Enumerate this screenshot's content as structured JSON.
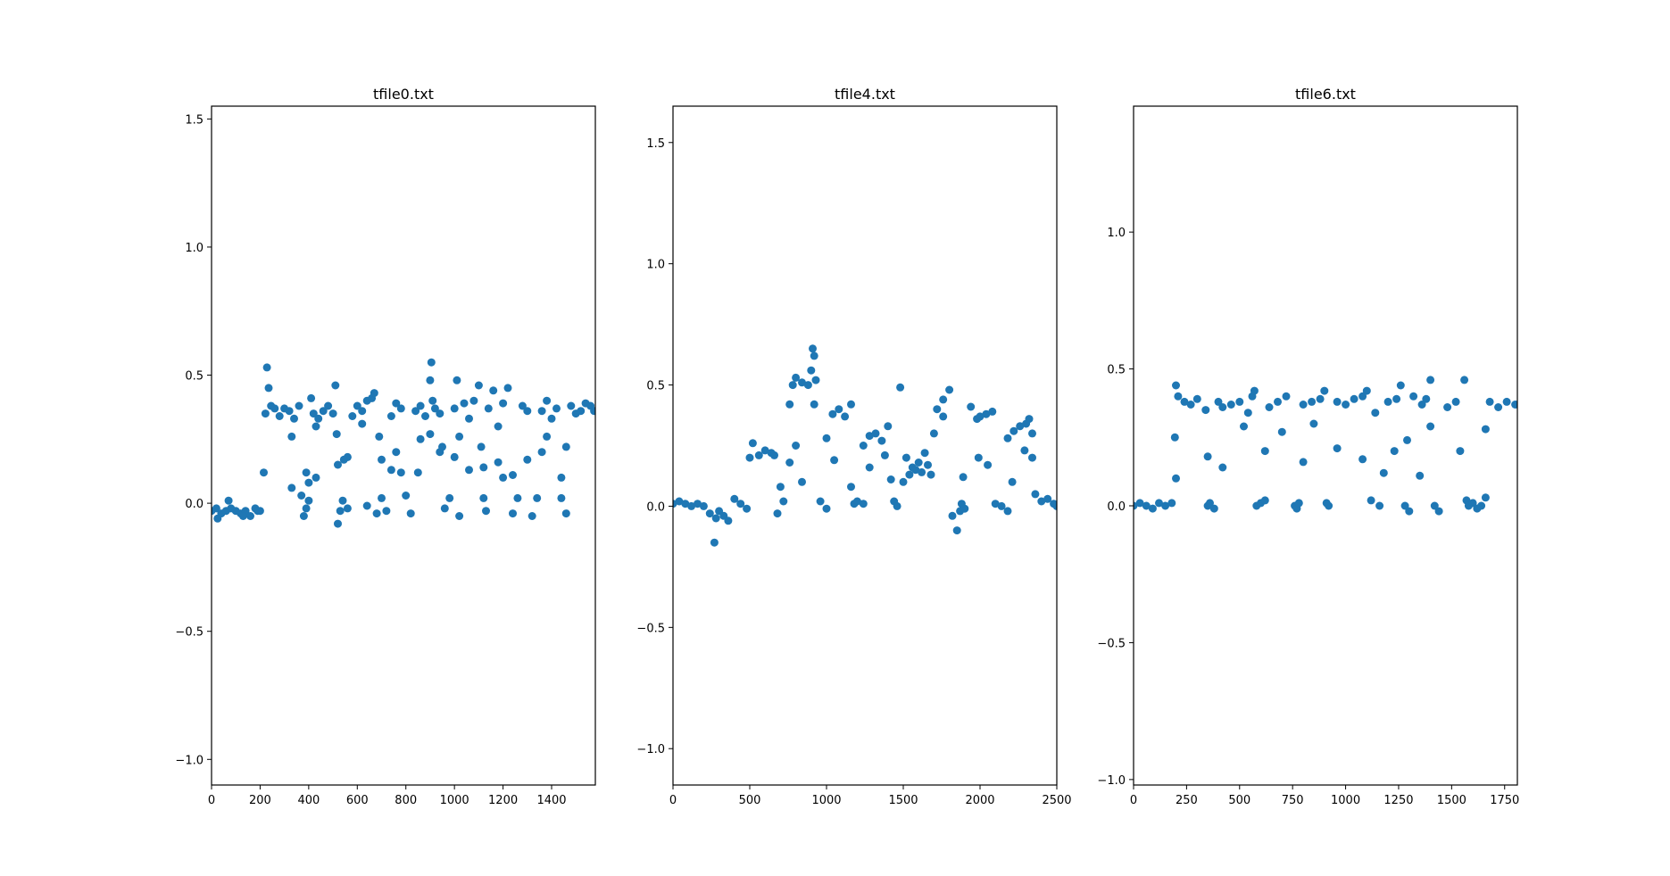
{
  "marker_color": "#1f77b4",
  "chart_data": [
    {
      "type": "scatter",
      "title": "tfile0.txt",
      "xlim": [
        0,
        1580
      ],
      "ylim": [
        -1.1,
        1.55
      ],
      "xticks": [
        0,
        200,
        400,
        600,
        800,
        1000,
        1200,
        1400
      ],
      "xtick_labels": [
        "0",
        "200",
        "400",
        "600",
        "800",
        "1000",
        "1200",
        "1400"
      ],
      "yticks": [
        -1.0,
        -0.5,
        0.0,
        0.5,
        1.0,
        1.5
      ],
      "ytick_labels": [
        "−1.0",
        "−0.5",
        "0.0",
        "0.5",
        "1.0",
        "1.5"
      ],
      "grid": false,
      "series": [
        {
          "x": [
            0,
            20,
            40,
            60,
            80,
            100,
            120,
            140,
            160,
            180,
            200,
            215,
            222,
            228,
            235,
            245,
            260,
            280,
            300,
            320,
            340,
            360,
            370,
            380,
            390,
            400,
            410,
            420,
            430,
            440,
            460,
            480,
            500,
            510,
            515,
            520,
            530,
            540,
            560,
            580,
            600,
            620,
            640,
            660,
            670,
            680,
            700,
            720,
            740,
            760,
            780,
            800,
            820,
            840,
            860,
            880,
            900,
            905,
            910,
            920,
            940,
            960,
            980,
            1000,
            1010,
            1020,
            1040,
            1060,
            1080,
            1100,
            1120,
            1130,
            1140,
            1160,
            1180,
            1200,
            1220,
            1240,
            1260,
            1280,
            1300,
            1320,
            1340,
            1360,
            1380,
            1400,
            1420,
            1440,
            1460,
            1480,
            1500,
            1520,
            1540,
            1560,
            1575,
            25,
            70,
            130,
            190,
            390,
            400,
            430,
            520,
            560,
            640,
            700,
            740,
            780,
            860,
            900,
            940,
            1000,
            1060,
            1110,
            1200,
            1300,
            1360,
            1440,
            1460,
            330,
            330,
            545,
            620,
            690,
            760,
            850,
            950,
            1020,
            1120,
            1180,
            1240,
            1380
          ],
          "y": [
            -0.03,
            -0.02,
            -0.04,
            -0.03,
            -0.02,
            -0.03,
            -0.04,
            -0.03,
            -0.05,
            -0.02,
            -0.03,
            0.12,
            0.35,
            0.53,
            0.45,
            0.38,
            0.37,
            0.34,
            0.37,
            0.36,
            0.33,
            0.38,
            0.03,
            -0.05,
            -0.02,
            0.01,
            0.41,
            0.35,
            0.3,
            0.33,
            0.36,
            0.38,
            0.35,
            0.46,
            0.27,
            -0.08,
            -0.03,
            0.01,
            0.18,
            0.34,
            0.38,
            0.36,
            0.4,
            0.41,
            0.43,
            -0.04,
            0.02,
            -0.03,
            0.34,
            0.39,
            0.37,
            0.03,
            -0.04,
            0.36,
            0.38,
            0.34,
            0.48,
            0.55,
            0.4,
            0.37,
            0.35,
            -0.02,
            0.02,
            0.37,
            0.48,
            -0.05,
            0.39,
            0.33,
            0.4,
            0.46,
            0.02,
            -0.03,
            0.37,
            0.44,
            0.3,
            0.39,
            0.45,
            -0.04,
            0.02,
            0.38,
            0.36,
            -0.05,
            0.02,
            0.36,
            0.4,
            0.33,
            0.37,
            0.02,
            -0.04,
            0.38,
            0.35,
            0.36,
            0.39,
            0.38,
            0.36,
            -0.06,
            0.01,
            -0.05,
            -0.03,
            0.12,
            0.08,
            0.1,
            0.15,
            -0.02,
            -0.01,
            0.17,
            0.13,
            0.12,
            0.25,
            0.27,
            0.2,
            0.18,
            0.13,
            0.22,
            0.1,
            0.17,
            0.2,
            0.1,
            0.22,
            0.06,
            0.26,
            0.17,
            0.31,
            0.26,
            0.2,
            0.12,
            0.22,
            0.26,
            0.14,
            0.16,
            0.11,
            0.26
          ]
        }
      ]
    },
    {
      "type": "scatter",
      "title": "tfile4.txt",
      "xlim": [
        0,
        2500
      ],
      "ylim": [
        -1.15,
        1.65
      ],
      "xticks": [
        0,
        500,
        1000,
        1500,
        2000,
        2500
      ],
      "xtick_labels": [
        "0",
        "500",
        "1000",
        "1500",
        "2000",
        "2500"
      ],
      "yticks": [
        -1.0,
        -0.5,
        0.0,
        0.5,
        1.0,
        1.5
      ],
      "ytick_labels": [
        "−1.0",
        "−0.5",
        "0.0",
        "0.5",
        "1.0",
        "1.5"
      ],
      "grid": false,
      "series": [
        {
          "x": [
            0,
            40,
            80,
            120,
            160,
            200,
            240,
            270,
            280,
            300,
            330,
            360,
            400,
            440,
            480,
            500,
            520,
            560,
            600,
            640,
            660,
            680,
            720,
            760,
            780,
            800,
            840,
            880,
            900,
            910,
            920,
            930,
            960,
            1000,
            1040,
            1080,
            1120,
            1160,
            1180,
            1200,
            1240,
            1280,
            1320,
            1360,
            1400,
            1440,
            1460,
            1480,
            1500,
            1520,
            1540,
            1560,
            1580,
            1600,
            1620,
            1640,
            1660,
            1680,
            1720,
            1760,
            1800,
            1820,
            1850,
            1870,
            1880,
            1900,
            1940,
            1980,
            2000,
            2040,
            2080,
            2100,
            2140,
            2180,
            2220,
            2260,
            2300,
            2320,
            2340,
            2360,
            2400,
            2440,
            2480,
            2500,
            700,
            760,
            800,
            840,
            920,
            1000,
            1050,
            1160,
            1240,
            1280,
            1380,
            1420,
            1700,
            1760,
            1890,
            1990,
            2050,
            2180,
            2210,
            2290,
            2340
          ],
          "y": [
            0.01,
            0.02,
            0.01,
            0.0,
            0.01,
            0.0,
            -0.03,
            -0.15,
            -0.05,
            -0.02,
            -0.04,
            -0.06,
            0.03,
            0.01,
            -0.01,
            0.2,
            0.26,
            0.21,
            0.23,
            0.22,
            0.21,
            -0.03,
            0.02,
            0.42,
            0.5,
            0.53,
            0.51,
            0.5,
            0.56,
            0.65,
            0.62,
            0.52,
            0.02,
            -0.01,
            0.38,
            0.4,
            0.37,
            0.42,
            0.01,
            0.02,
            0.01,
            0.29,
            0.3,
            0.27,
            0.33,
            0.02,
            0.0,
            0.49,
            0.1,
            0.2,
            0.13,
            0.16,
            0.15,
            0.18,
            0.14,
            0.22,
            0.17,
            0.13,
            0.4,
            0.44,
            0.48,
            -0.04,
            -0.1,
            -0.02,
            0.01,
            -0.01,
            0.41,
            0.36,
            0.37,
            0.38,
            0.39,
            0.01,
            0.0,
            -0.02,
            0.31,
            0.33,
            0.34,
            0.36,
            0.2,
            0.05,
            0.02,
            0.03,
            0.01,
            0.0,
            0.08,
            0.18,
            0.25,
            0.1,
            0.42,
            0.28,
            0.19,
            0.08,
            0.25,
            0.16,
            0.21,
            0.11,
            0.3,
            0.37,
            0.12,
            0.2,
            0.17,
            0.28,
            0.1,
            0.23,
            0.3
          ]
        }
      ]
    },
    {
      "type": "scatter",
      "title": "tfile6.txt",
      "xlim": [
        0,
        1810
      ],
      "ylim": [
        -1.02,
        1.46
      ],
      "xticks": [
        0,
        250,
        500,
        750,
        1000,
        1250,
        1500,
        1750
      ],
      "xtick_labels": [
        "0",
        "250",
        "500",
        "750",
        "1000",
        "1250",
        "1500",
        "1750"
      ],
      "yticks": [
        -1.0,
        -0.5,
        0.0,
        0.5,
        1.0
      ],
      "ytick_labels": [
        "−1.0",
        "−0.5",
        "0.0",
        "0.5",
        "1.0"
      ],
      "grid": false,
      "series": [
        {
          "x": [
            0,
            30,
            60,
            90,
            120,
            150,
            180,
            195,
            200,
            210,
            240,
            270,
            300,
            340,
            350,
            360,
            380,
            400,
            420,
            460,
            500,
            540,
            560,
            570,
            580,
            600,
            620,
            640,
            680,
            720,
            760,
            770,
            780,
            800,
            840,
            880,
            900,
            910,
            920,
            960,
            1000,
            1040,
            1080,
            1100,
            1120,
            1160,
            1200,
            1240,
            1260,
            1280,
            1300,
            1320,
            1360,
            1380,
            1400,
            1420,
            1440,
            1480,
            1520,
            1560,
            1570,
            1580,
            1600,
            1620,
            1640,
            1660,
            1680,
            1720,
            1760,
            1800,
            200,
            350,
            420,
            520,
            620,
            700,
            800,
            850,
            960,
            1080,
            1140,
            1180,
            1230,
            1290,
            1350,
            1400,
            1540,
            1660
          ],
          "y": [
            0.0,
            0.01,
            0.0,
            -0.01,
            0.01,
            0.0,
            0.01,
            0.25,
            0.44,
            0.4,
            0.38,
            0.37,
            0.39,
            0.35,
            0.0,
            0.01,
            -0.01,
            0.38,
            0.36,
            0.37,
            0.38,
            0.34,
            0.4,
            0.42,
            0.0,
            0.01,
            0.02,
            0.36,
            0.38,
            0.4,
            0.0,
            -0.01,
            0.01,
            0.37,
            0.38,
            0.39,
            0.42,
            0.01,
            0.0,
            0.38,
            0.37,
            0.39,
            0.4,
            0.42,
            0.02,
            0.0,
            0.38,
            0.39,
            0.44,
            0.0,
            -0.02,
            0.4,
            0.37,
            0.39,
            0.46,
            0.0,
            -0.02,
            0.36,
            0.38,
            0.46,
            0.02,
            0.0,
            0.01,
            -0.01,
            0.0,
            0.03,
            0.38,
            0.36,
            0.38,
            0.37,
            0.1,
            0.18,
            0.14,
            0.29,
            0.2,
            0.27,
            0.16,
            0.3,
            0.21,
            0.17,
            0.34,
            0.12,
            0.2,
            0.24,
            0.11,
            0.29,
            0.2,
            0.28
          ]
        }
      ]
    }
  ]
}
